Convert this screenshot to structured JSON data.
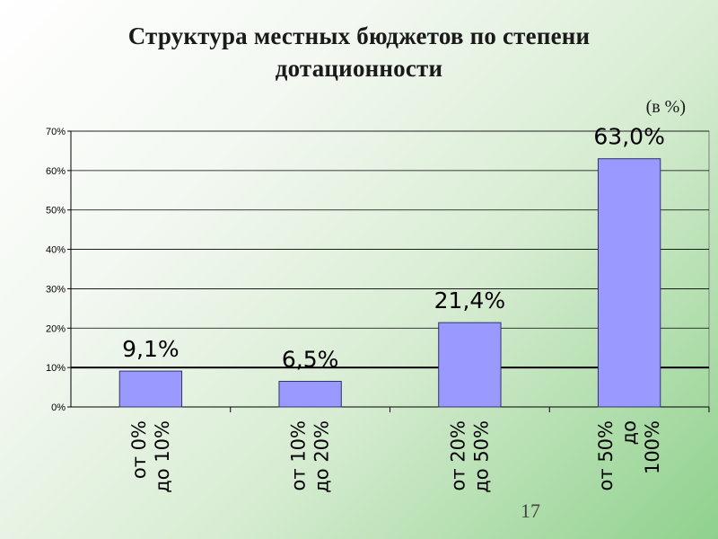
{
  "slide": {
    "title_line1": "Структура местных бюджетов по степени",
    "title_line2": "дотационности",
    "unit_note": "(в %)",
    "page_number": "17"
  },
  "chart_data": {
    "type": "bar",
    "categories": [
      [
        "от 0%",
        "до 10%"
      ],
      [
        "от 10%",
        "до 20%"
      ],
      [
        "от 20%",
        "до 50%"
      ],
      [
        "от 50%",
        "до",
        "100%"
      ]
    ],
    "values": [
      9.1,
      6.5,
      21.4,
      63.0
    ],
    "data_labels": [
      "9,1%",
      "6,5%",
      "21,4%",
      "63,0%"
    ],
    "y_ticks": [
      0,
      10,
      20,
      30,
      40,
      50,
      60,
      70
    ],
    "y_tick_labels": [
      "0%",
      "10%",
      "20%",
      "30%",
      "40%",
      "50%",
      "60%",
      "70%"
    ],
    "ylim": [
      0,
      70
    ],
    "title": "",
    "xlabel": "",
    "ylabel": "",
    "grid": true,
    "reference_line": 10,
    "bar_color": "#9999ff",
    "bar_edge_color": "#333366",
    "legend": "none"
  }
}
